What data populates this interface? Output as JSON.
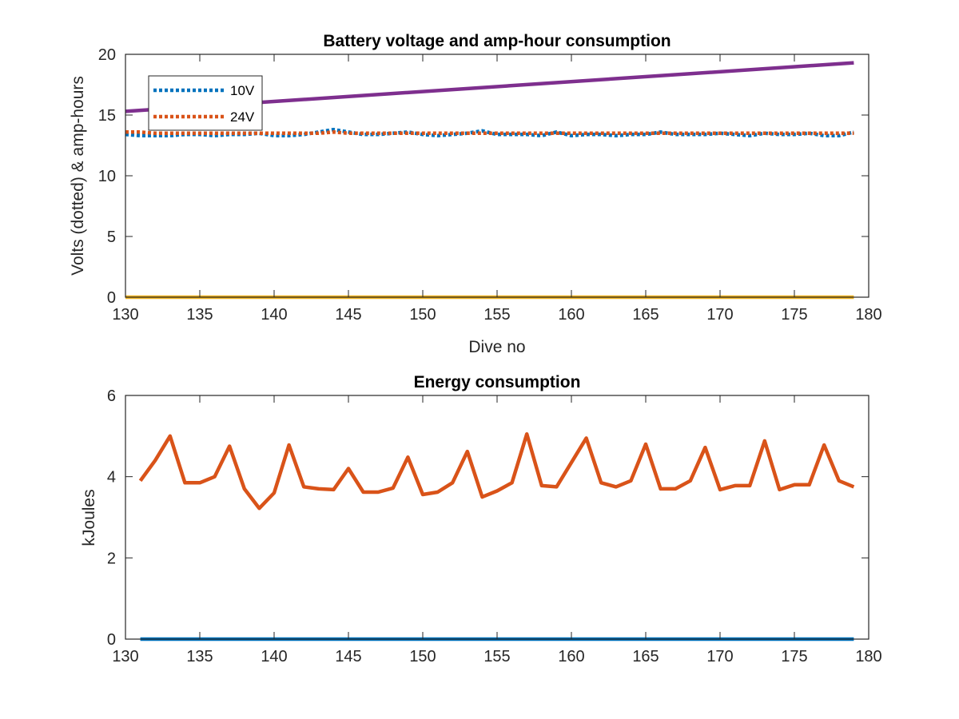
{
  "chart_data": [
    {
      "type": "line",
      "title": "Battery voltage and amp-hour consumption",
      "xlabel": "Dive no",
      "ylabel": "Volts (dotted) & amp-hours",
      "xlim": [
        130,
        180
      ],
      "ylim": [
        0,
        20
      ],
      "xticks": [
        130,
        135,
        140,
        145,
        150,
        155,
        160,
        165,
        170,
        175,
        180
      ],
      "yticks": [
        0,
        5,
        10,
        15,
        20
      ],
      "grid": false,
      "legend": {
        "placement": "top-left",
        "entries": [
          "10V",
          "24V"
        ]
      },
      "series": [
        {
          "name": "10V",
          "style": "dotted",
          "color": "#0072BD",
          "x": [
            130,
            131,
            132,
            133,
            134,
            135,
            136,
            137,
            138,
            139,
            140,
            141,
            142,
            143,
            144,
            145,
            146,
            147,
            148,
            149,
            150,
            151,
            152,
            153,
            154,
            155,
            156,
            157,
            158,
            159,
            160,
            161,
            162,
            163,
            164,
            165,
            166,
            167,
            168,
            169,
            170,
            171,
            172,
            173,
            174,
            175,
            176,
            177,
            178,
            179
          ],
          "y": [
            13.4,
            13.3,
            13.3,
            13.3,
            13.4,
            13.4,
            13.3,
            13.4,
            13.4,
            13.5,
            13.3,
            13.3,
            13.4,
            13.6,
            13.8,
            13.6,
            13.4,
            13.4,
            13.5,
            13.6,
            13.4,
            13.3,
            13.4,
            13.5,
            13.7,
            13.4,
            13.4,
            13.4,
            13.3,
            13.6,
            13.3,
            13.4,
            13.4,
            13.3,
            13.4,
            13.4,
            13.6,
            13.4,
            13.4,
            13.4,
            13.5,
            13.4,
            13.3,
            13.5,
            13.4,
            13.4,
            13.5,
            13.3,
            13.3,
            13.6
          ]
        },
        {
          "name": "24V",
          "style": "dotted",
          "color": "#D95319",
          "x": [
            130,
            131,
            132,
            133,
            134,
            135,
            136,
            137,
            138,
            139,
            140,
            141,
            142,
            143,
            144,
            145,
            146,
            147,
            148,
            149,
            150,
            151,
            152,
            153,
            154,
            155,
            156,
            157,
            158,
            159,
            160,
            161,
            162,
            163,
            164,
            165,
            166,
            167,
            168,
            169,
            170,
            171,
            172,
            173,
            174,
            175,
            176,
            177,
            178,
            179
          ],
          "y": [
            13.6,
            13.6,
            13.5,
            13.5,
            13.5,
            13.5,
            13.5,
            13.5,
            13.5,
            13.5,
            13.5,
            13.5,
            13.5,
            13.5,
            13.6,
            13.5,
            13.5,
            13.5,
            13.5,
            13.5,
            13.5,
            13.5,
            13.5,
            13.5,
            13.5,
            13.5,
            13.5,
            13.5,
            13.5,
            13.5,
            13.5,
            13.5,
            13.5,
            13.5,
            13.5,
            13.5,
            13.5,
            13.5,
            13.5,
            13.5,
            13.5,
            13.5,
            13.5,
            13.5,
            13.5,
            13.5,
            13.5,
            13.5,
            13.5,
            13.5
          ]
        },
        {
          "style": "solid",
          "color": "#EDB120",
          "x": [
            130,
            179
          ],
          "y": [
            0,
            0
          ]
        },
        {
          "style": "solid",
          "color": "#7E2F8E",
          "x": [
            130,
            179
          ],
          "y": [
            15.3,
            19.3
          ]
        }
      ]
    },
    {
      "type": "line",
      "title": "Energy consumption",
      "xlabel": "",
      "ylabel": "kJoules",
      "xlim": [
        130,
        180
      ],
      "ylim": [
        0,
        6
      ],
      "xticks": [
        130,
        135,
        140,
        145,
        150,
        155,
        160,
        165,
        170,
        175,
        180
      ],
      "yticks": [
        0,
        2,
        4,
        6
      ],
      "grid": false,
      "series": [
        {
          "style": "solid",
          "color": "#0072BD",
          "x": [
            131,
            179
          ],
          "y": [
            0,
            0
          ]
        },
        {
          "style": "solid",
          "color": "#D95319",
          "x": [
            131,
            132,
            133,
            134,
            135,
            136,
            137,
            138,
            139,
            140,
            141,
            142,
            143,
            144,
            145,
            146,
            147,
            148,
            149,
            150,
            151,
            152,
            153,
            154,
            155,
            156,
            157,
            158,
            159,
            160,
            161,
            162,
            163,
            164,
            165,
            166,
            167,
            168,
            169,
            170,
            171,
            172,
            173,
            174,
            175,
            176,
            177,
            178,
            179
          ],
          "y": [
            3.9,
            4.4,
            5.0,
            3.85,
            3.85,
            4.0,
            4.75,
            3.7,
            3.22,
            3.6,
            4.78,
            3.75,
            3.7,
            3.68,
            4.2,
            3.62,
            3.62,
            3.72,
            4.48,
            3.56,
            3.62,
            3.85,
            4.62,
            3.5,
            3.65,
            3.85,
            5.05,
            3.78,
            3.75,
            4.35,
            4.95,
            3.85,
            3.75,
            3.9,
            4.8,
            3.7,
            3.7,
            3.9,
            4.72,
            3.68,
            3.78,
            3.78,
            4.88,
            3.68,
            3.8,
            3.8,
            4.78,
            3.9,
            3.75
          ]
        }
      ]
    }
  ]
}
